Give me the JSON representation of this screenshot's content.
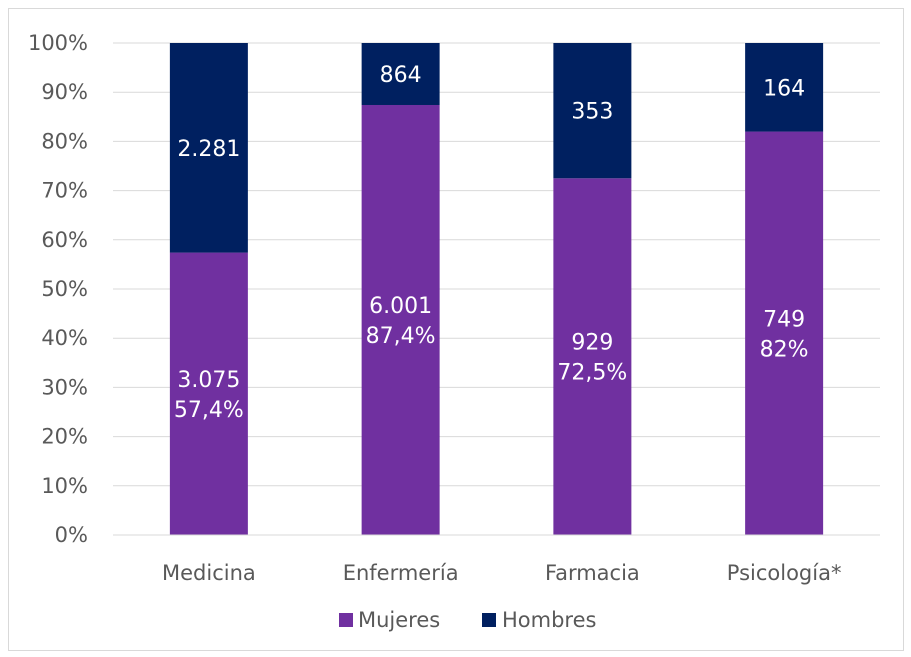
{
  "chart_data": {
    "type": "bar",
    "stacked": "percent",
    "categories": [
      "Medicina",
      "Enfermería",
      "Farmacia",
      "Psicología*"
    ],
    "series": [
      {
        "name": "Mujeres",
        "color": "#7030a0",
        "counts": [
          3075,
          6001,
          929,
          749
        ],
        "percent": [
          57.4,
          87.4,
          72.5,
          82.0
        ],
        "labels": [
          [
            "3.075",
            "57,4%"
          ],
          [
            "6.001",
            "87,4%"
          ],
          [
            "929",
            "72,5%"
          ],
          [
            "749",
            "82%"
          ]
        ]
      },
      {
        "name": "Hombres",
        "color": "#002060",
        "counts": [
          2281,
          864,
          353,
          164
        ],
        "percent": [
          42.6,
          12.6,
          27.5,
          18.0
        ],
        "labels": [
          [
            "2.281"
          ],
          [
            "864"
          ],
          [
            "353"
          ],
          [
            "164"
          ]
        ]
      }
    ],
    "yticks": [
      "0%",
      "10%",
      "20%",
      "30%",
      "40%",
      "50%",
      "60%",
      "70%",
      "80%",
      "90%",
      "100%"
    ],
    "ylim": [
      0,
      100
    ],
    "grid": true,
    "legend_position": "bottom"
  }
}
